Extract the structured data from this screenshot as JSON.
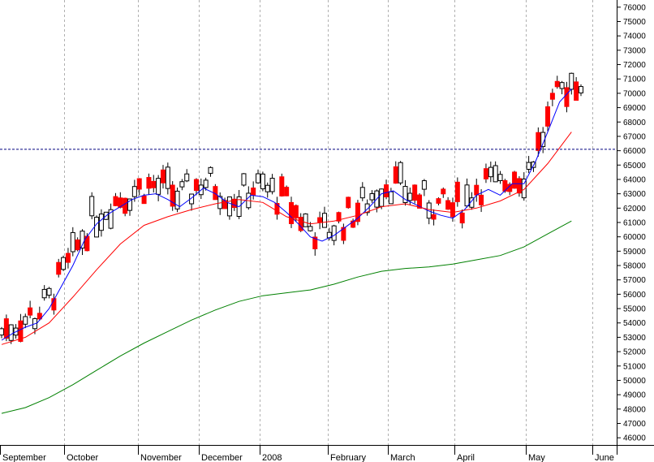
{
  "chart_data": {
    "type": "candlestick",
    "title": "",
    "xlabel": "",
    "ylabel": "",
    "ylim": [
      45500,
      76500
    ],
    "y_ticks": [
      46000,
      47000,
      48000,
      49000,
      50000,
      51000,
      52000,
      53000,
      54000,
      55000,
      56000,
      57000,
      58000,
      59000,
      60000,
      61000,
      62000,
      63000,
      64000,
      65000,
      66000,
      67000,
      68000,
      69000,
      70000,
      71000,
      72000,
      73000,
      74000,
      75000,
      76000
    ],
    "x_tick_labels": [
      "September",
      "October",
      "November",
      "December",
      "2008",
      "February",
      "March",
      "April",
      "May",
      "June"
    ],
    "grid": "vertical dashed gridlines at month boundaries",
    "y_axis_position": "right",
    "reference_line": {
      "value": 66100,
      "style": "dashed",
      "color": "#000080"
    },
    "colors": {
      "up": "#ffffff",
      "down": "#ff0000",
      "wick": "#000000",
      "ma_short": "#0000ff",
      "ma_mid": "#ff0000",
      "ma_long": "#008000"
    },
    "series": [
      {
        "type": "moving_average",
        "color": "#0000ff",
        "values": [
          [
            0,
            52800
          ],
          [
            5,
            53300
          ],
          [
            10,
            53700
          ],
          [
            15,
            54000
          ],
          [
            20,
            55000
          ],
          [
            25,
            56500
          ],
          [
            30,
            58000
          ],
          [
            35,
            59800
          ],
          [
            40,
            60900
          ],
          [
            45,
            61600
          ],
          [
            50,
            62100
          ],
          [
            55,
            62600
          ],
          [
            60,
            62900
          ],
          [
            65,
            63000
          ],
          [
            70,
            62600
          ],
          [
            75,
            62100
          ],
          [
            80,
            62700
          ],
          [
            85,
            63400
          ],
          [
            90,
            63000
          ],
          [
            95,
            62400
          ],
          [
            100,
            62100
          ],
          [
            105,
            62900
          ],
          [
            110,
            62800
          ],
          [
            115,
            62400
          ],
          [
            120,
            61700
          ],
          [
            125,
            60900
          ],
          [
            130,
            60000
          ],
          [
            135,
            59700
          ],
          [
            140,
            60100
          ],
          [
            145,
            60700
          ],
          [
            150,
            61300
          ],
          [
            155,
            62100
          ],
          [
            160,
            63000
          ],
          [
            165,
            63200
          ],
          [
            170,
            62600
          ],
          [
            175,
            62200
          ],
          [
            180,
            61800
          ],
          [
            185,
            61500
          ],
          [
            190,
            61300
          ],
          [
            195,
            61900
          ],
          [
            200,
            62900
          ],
          [
            205,
            63300
          ],
          [
            210,
            62900
          ],
          [
            215,
            63700
          ],
          [
            220,
            63700
          ],
          [
            225,
            65300
          ],
          [
            230,
            67300
          ],
          [
            235,
            69400
          ],
          [
            240,
            70300
          ]
        ]
      },
      {
        "type": "moving_average",
        "color": "#ff0000",
        "values": [
          [
            0,
            52500
          ],
          [
            10,
            53000
          ],
          [
            20,
            54000
          ],
          [
            30,
            55800
          ],
          [
            40,
            57700
          ],
          [
            50,
            59500
          ],
          [
            60,
            60800
          ],
          [
            70,
            61400
          ],
          [
            80,
            61900
          ],
          [
            90,
            62300
          ],
          [
            100,
            62600
          ],
          [
            110,
            62400
          ],
          [
            120,
            61400
          ],
          [
            130,
            60900
          ],
          [
            140,
            61100
          ],
          [
            150,
            61500
          ],
          [
            160,
            62100
          ],
          [
            170,
            62300
          ],
          [
            180,
            61900
          ],
          [
            190,
            61700
          ],
          [
            200,
            62000
          ],
          [
            210,
            62500
          ],
          [
            220,
            63300
          ],
          [
            230,
            65100
          ],
          [
            240,
            67300
          ]
        ]
      },
      {
        "type": "moving_average",
        "color": "#008000",
        "values": [
          [
            0,
            47700
          ],
          [
            10,
            48100
          ],
          [
            20,
            48800
          ],
          [
            30,
            49700
          ],
          [
            40,
            50700
          ],
          [
            50,
            51700
          ],
          [
            60,
            52600
          ],
          [
            70,
            53400
          ],
          [
            80,
            54200
          ],
          [
            90,
            54900
          ],
          [
            100,
            55500
          ],
          [
            110,
            55900
          ],
          [
            120,
            56100
          ],
          [
            130,
            56300
          ],
          [
            140,
            56700
          ],
          [
            150,
            57200
          ],
          [
            160,
            57600
          ],
          [
            170,
            57800
          ],
          [
            180,
            57900
          ],
          [
            190,
            58100
          ],
          [
            200,
            58400
          ],
          [
            210,
            58700
          ],
          [
            220,
            59300
          ],
          [
            230,
            60200
          ],
          [
            240,
            61100
          ]
        ]
      }
    ]
  }
}
